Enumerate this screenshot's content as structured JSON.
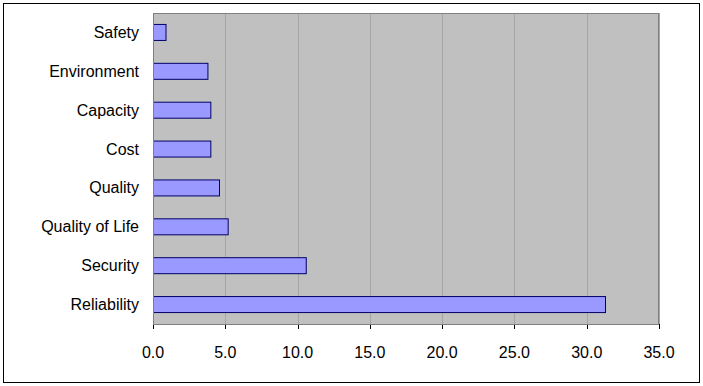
{
  "chart_data": {
    "type": "bar",
    "orientation": "horizontal",
    "categories": [
      "Safety",
      "Environment",
      "Capacity",
      "Cost",
      "Quality",
      "Quality of Life",
      "Security",
      "Reliability"
    ],
    "values": [
      0.9,
      3.8,
      4.0,
      4.0,
      4.6,
      5.2,
      10.6,
      31.3
    ],
    "color": "#9999ff",
    "xlim": [
      0,
      35
    ],
    "xticks": [
      {
        "value": 0,
        "label": "0.0"
      },
      {
        "value": 5,
        "label": "5.0"
      },
      {
        "value": 10,
        "label": "10.0"
      },
      {
        "value": 15,
        "label": "15.0"
      },
      {
        "value": 20,
        "label": "20.0"
      },
      {
        "value": 25,
        "label": "25.0"
      },
      {
        "value": 30,
        "label": "30.0"
      },
      {
        "value": 35,
        "label": "35.0"
      }
    ],
    "grid": true
  }
}
